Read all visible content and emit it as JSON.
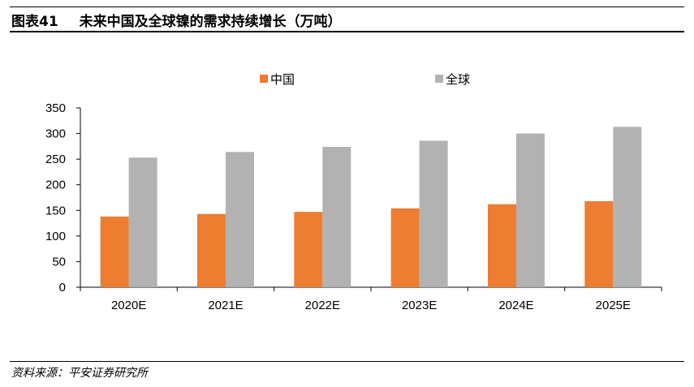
{
  "header": {
    "figure_no": "图表41",
    "title": "未来中国及全球镍的需求持续增长（万吨）"
  },
  "footer": {
    "source": "资料来源：平安证券研究所"
  },
  "chart_data": {
    "type": "bar",
    "title": "未来中国及全球镍的需求持续增长（万吨）",
    "categories": [
      "2020E",
      "2021E",
      "2022E",
      "2023E",
      "2024E",
      "2025E"
    ],
    "series": [
      {
        "name": "中国",
        "color": "#ED7D31",
        "values": [
          138,
          143,
          147,
          154,
          162,
          168
        ]
      },
      {
        "name": "全球",
        "color": "#B2B2B2",
        "values": [
          253,
          264,
          274,
          286,
          300,
          313
        ]
      }
    ],
    "ylim": [
      0,
      350
    ],
    "yticks": [
      0,
      50,
      100,
      150,
      200,
      250,
      300,
      350
    ],
    "grid": false,
    "legend_position": "top"
  }
}
